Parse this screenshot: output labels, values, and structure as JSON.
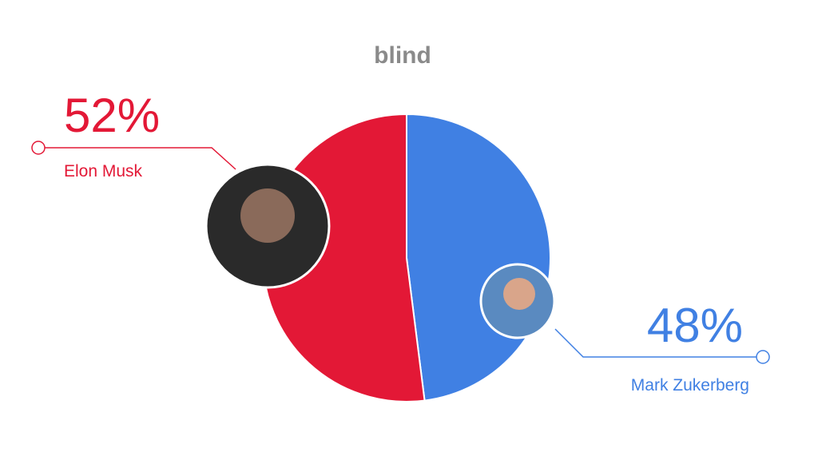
{
  "chart_data": {
    "type": "pie",
    "title": "blind",
    "categories": [
      "Elon Musk",
      "Mark Zukerberg"
    ],
    "values": [
      52,
      48
    ],
    "value_labels": [
      "52%",
      "48%"
    ],
    "colors": [
      "#e31836",
      "#4080e3"
    ]
  }
}
